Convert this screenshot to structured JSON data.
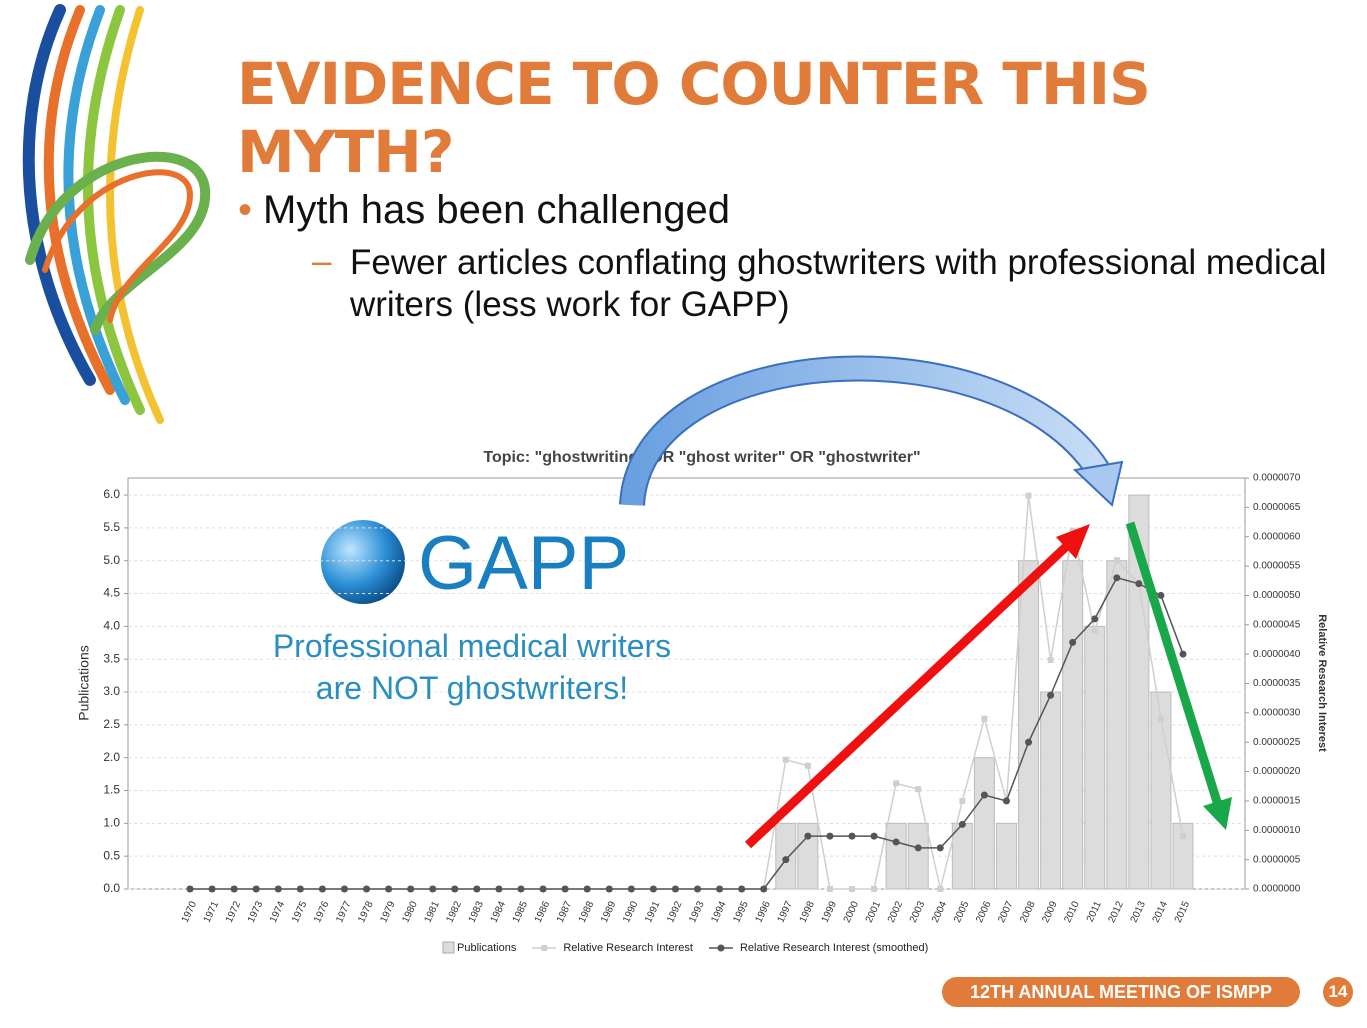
{
  "slide": {
    "title": "EVIDENCE TO COUNTER THIS MYTH?",
    "bullet": "Myth has been challenged",
    "sub_bullet": "Fewer articles conflating ghostwriters with professional medical writers (less work for GAPP)",
    "logo_text": "GAPP",
    "callout": [
      "Professional medical writers",
      "are NOT ghostwriters!"
    ],
    "footer": "12TH ANNUAL MEETING OF ISMPP",
    "page_number": "14"
  },
  "chart_data": {
    "type": "bar",
    "title": "Topic: \"ghostwriting\" OR \"ghost writer\" OR \"ghostwriter\"",
    "y_label": "Publications",
    "y2_label": "Relative Research Interest",
    "categories": [
      "1970",
      "1971",
      "1972",
      "1973",
      "1974",
      "1975",
      "1976",
      "1977",
      "1978",
      "1979",
      "1980",
      "1981",
      "1982",
      "1983",
      "1984",
      "1985",
      "1986",
      "1987",
      "1988",
      "1989",
      "1990",
      "1991",
      "1992",
      "1993",
      "1994",
      "1995",
      "1996",
      "1997",
      "1998",
      "1999",
      "2000",
      "2001",
      "2002",
      "2003",
      "2004",
      "2005",
      "2006",
      "2007",
      "2008",
      "2009",
      "2010",
      "2011",
      "2012",
      "2013",
      "2014",
      "2015"
    ],
    "series": [
      {
        "name": "Publications",
        "type": "bar",
        "color": "#dcdcdc",
        "values": [
          0,
          0,
          0,
          0,
          0,
          0,
          0,
          0,
          0,
          0,
          0,
          0,
          0,
          0,
          0,
          0,
          0,
          0,
          0,
          0,
          0,
          0,
          0,
          0,
          0,
          0,
          0,
          1,
          1,
          0,
          0,
          0,
          1,
          1,
          0,
          1,
          2,
          1,
          5,
          3,
          5,
          4,
          5,
          6,
          3,
          1
        ]
      },
      {
        "name": "Relative Research Interest",
        "type": "line",
        "axis": "y2",
        "color": "#cfcfcf",
        "marker": "square",
        "values": [
          0,
          0,
          0,
          0,
          0,
          0,
          0,
          0,
          0,
          0,
          0,
          0,
          0,
          0,
          0,
          0,
          0,
          0,
          0,
          0,
          0,
          0,
          0,
          0,
          0,
          0,
          0,
          2.2e-06,
          2.1e-06,
          0,
          0,
          0,
          1.8e-06,
          1.7e-06,
          0,
          1.5e-06,
          2.9e-06,
          1.5e-06,
          6.7e-06,
          3.9e-06,
          6.1e-06,
          4.4e-06,
          5.6e-06,
          5.2e-06,
          2.9e-06,
          9e-07
        ]
      },
      {
        "name": "Relative Research Interest (smoothed)",
        "type": "line",
        "axis": "y2",
        "color": "#555555",
        "marker": "circle",
        "values": [
          0,
          0,
          0,
          0,
          0,
          0,
          0,
          0,
          0,
          0,
          0,
          0,
          0,
          0,
          0,
          0,
          0,
          0,
          0,
          0,
          0,
          0,
          0,
          0,
          0,
          0,
          0,
          5e-07,
          9e-07,
          9e-07,
          9e-07,
          9e-07,
          8e-07,
          7e-07,
          7e-07,
          1.1e-06,
          1.6e-06,
          1.5e-06,
          2.5e-06,
          3.3e-06,
          4.2e-06,
          4.6e-06,
          5.3e-06,
          5.2e-06,
          5e-06,
          4e-06
        ]
      }
    ],
    "ylim": [
      0,
      6.26
    ],
    "yticks": [
      {
        "value": 0,
        "label": "0.0"
      },
      {
        "value": 0.5,
        "label": "0.5"
      },
      {
        "value": 1,
        "label": "1.0"
      },
      {
        "value": 1.5,
        "label": "1.5"
      },
      {
        "value": 2,
        "label": "2.0"
      },
      {
        "value": 2.5,
        "label": "2.5"
      },
      {
        "value": 3,
        "label": "3.0"
      },
      {
        "value": 3.5,
        "label": "3.5"
      },
      {
        "value": 4,
        "label": "4.0"
      },
      {
        "value": 4.5,
        "label": "4.5"
      },
      {
        "value": 5,
        "label": "5.0"
      },
      {
        "value": 5.5,
        "label": "5.5"
      },
      {
        "value": 6,
        "label": "6.0"
      }
    ],
    "y2lim": [
      0,
      7e-06
    ],
    "y2ticks": [
      {
        "value": 0,
        "label": "0.0000000"
      },
      {
        "value": 5e-07,
        "label": "0.0000005"
      },
      {
        "value": 1e-06,
        "label": "0.0000010"
      },
      {
        "value": 1.5e-06,
        "label": "0.0000015"
      },
      {
        "value": 2e-06,
        "label": "0.0000020"
      },
      {
        "value": 2.5e-06,
        "label": "0.0000025"
      },
      {
        "value": 3e-06,
        "label": "0.0000030"
      },
      {
        "value": 3.5e-06,
        "label": "0.0000035"
      },
      {
        "value": 4e-06,
        "label": "0.0000040"
      },
      {
        "value": 4.5e-06,
        "label": "0.0000045"
      },
      {
        "value": 5e-06,
        "label": "0.0000050"
      },
      {
        "value": 5.5e-06,
        "label": "0.0000055"
      },
      {
        "value": 6e-06,
        "label": "0.0000060"
      },
      {
        "value": 6.5e-06,
        "label": "0.0000065"
      },
      {
        "value": 7e-06,
        "label": "0.0000070"
      }
    ],
    "grid": true,
    "legend": "bottom"
  }
}
